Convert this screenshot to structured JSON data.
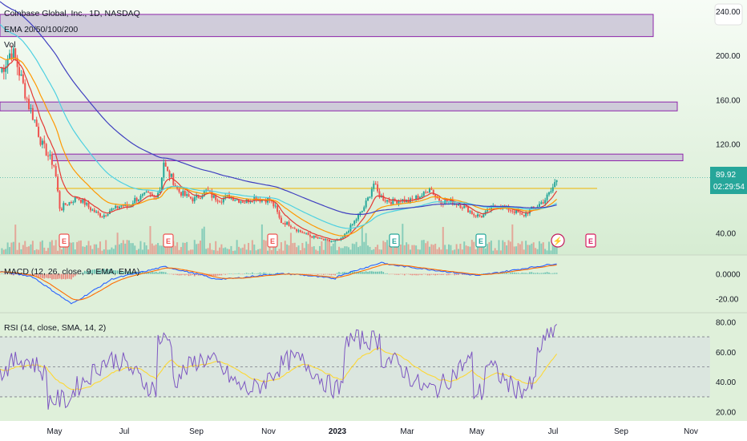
{
  "header": {
    "title": "Coinbase Global, Inc., 1D, NASDAQ",
    "ema_label": "EMA 20/50/100/200",
    "vol_label": "Vol"
  },
  "price_tags": {
    "last": "89.92",
    "countdown": "02:29:54"
  },
  "indicators": {
    "macd_label": "MACD (12, 26, close, 9, EMA, EMA)",
    "rsi_label": "RSI (14, close, SMA, 14, 2)"
  },
  "colors": {
    "background": "#dff0da",
    "up": "#26a69a",
    "down": "#ef5350",
    "ema20": "#e53935",
    "ema50": "#ff9800",
    "ema100": "#4dd0e1",
    "ema200": "#3f3fc0",
    "resistance_fill": "#c9c3d6",
    "resistance_stroke": "#8e24aa",
    "horizontal_level": "#f0b400",
    "macd_line": "#2962ff",
    "signal_line": "#ff6d00",
    "rsi_line": "#7e57c2",
    "rsi_ma": "#fdd835",
    "tag_bg": "#26a69a"
  },
  "events": [
    "E",
    "E",
    "E",
    "E",
    "E",
    "⚡",
    "E"
  ],
  "chart_data": [
    {
      "type": "line",
      "name": "price",
      "title": "Coinbase Global, Inc., 1D, NASDAQ",
      "ylim": [
        20,
        250
      ],
      "y_ticks": [
        "240.00",
        "200.00",
        "160.00",
        "120.00",
        "40.00"
      ],
      "x_ticks": [
        "May",
        "Jul",
        "Sep",
        "Nov",
        "2023",
        "Mar",
        "May",
        "Jul",
        "Sep",
        "Nov"
      ],
      "last_price": 89.92,
      "horizontal_level": 80,
      "resistance_zones": [
        [
          217,
          237
        ],
        [
          150,
          158
        ],
        [
          105,
          111
        ]
      ],
      "series": [
        {
          "name": "EMA 20"
        },
        {
          "name": "EMA 50"
        },
        {
          "name": "EMA 100"
        },
        {
          "name": "EMA 200"
        }
      ]
    },
    {
      "type": "line",
      "name": "MACD",
      "title": "MACD (12, 26, close, 9, EMA, EMA)",
      "ylim": [
        -30,
        14
      ],
      "y_ticks": [
        "0.0000",
        "-20.00"
      ]
    },
    {
      "type": "line",
      "name": "RSI",
      "title": "RSI (14, close, SMA, 14, 2)",
      "ylim": [
        15,
        85
      ],
      "y_ticks": [
        "80.00",
        "60.00",
        "40.00",
        "20.00"
      ],
      "bands": [
        30,
        70
      ],
      "mid": 50
    }
  ]
}
